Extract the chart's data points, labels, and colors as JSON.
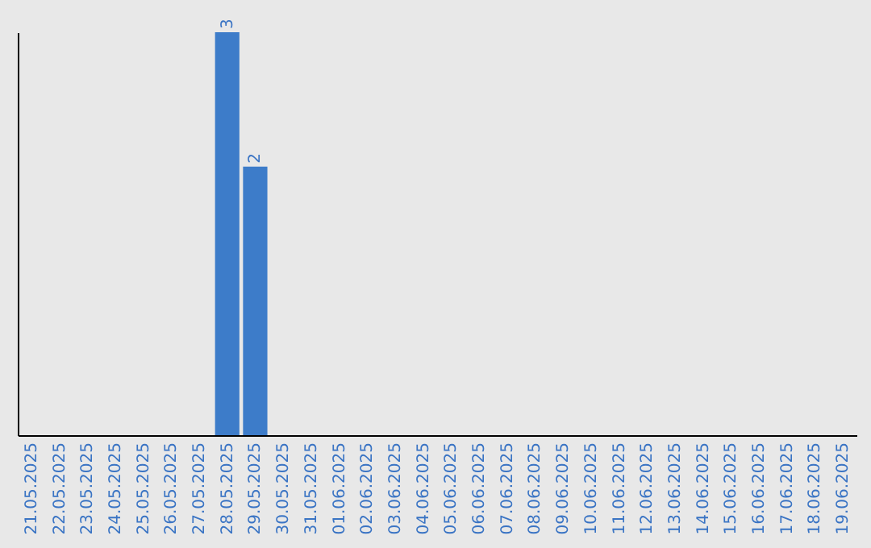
{
  "chart_data": {
    "type": "bar",
    "categories": [
      "21.05.2025",
      "22.05.2025",
      "23.05.2025",
      "24.05.2025",
      "25.05.2025",
      "26.05.2025",
      "27.05.2025",
      "28.05.2025",
      "29.05.2025",
      "30.05.2025",
      "31.05.2025",
      "01.06.2025",
      "02.06.2025",
      "03.06.2025",
      "04.06.2025",
      "05.06.2025",
      "06.06.2025",
      "07.06.2025",
      "08.06.2025",
      "09.06.2025",
      "10.06.2025",
      "11.06.2025",
      "12.06.2025",
      "13.06.2025",
      "14.06.2025",
      "15.06.2025",
      "16.06.2025",
      "17.06.2025",
      "18.06.2025",
      "19.06.2025"
    ],
    "values": [
      0,
      0,
      0,
      0,
      0,
      0,
      0,
      3,
      2,
      0,
      0,
      0,
      0,
      0,
      0,
      0,
      0,
      0,
      0,
      0,
      0,
      0,
      0,
      0,
      0,
      0,
      0,
      0,
      0,
      0
    ],
    "color": "#3d7cc9",
    "ylim": [
      0,
      3
    ],
    "value_labels": [
      null,
      null,
      null,
      null,
      null,
      null,
      null,
      "3",
      "2",
      null,
      null,
      null,
      null,
      null,
      null,
      null,
      null,
      null,
      null,
      null,
      null,
      null,
      null,
      null,
      null,
      null,
      null,
      null,
      null,
      null
    ],
    "tick_labels": "x",
    "grid": false
  }
}
